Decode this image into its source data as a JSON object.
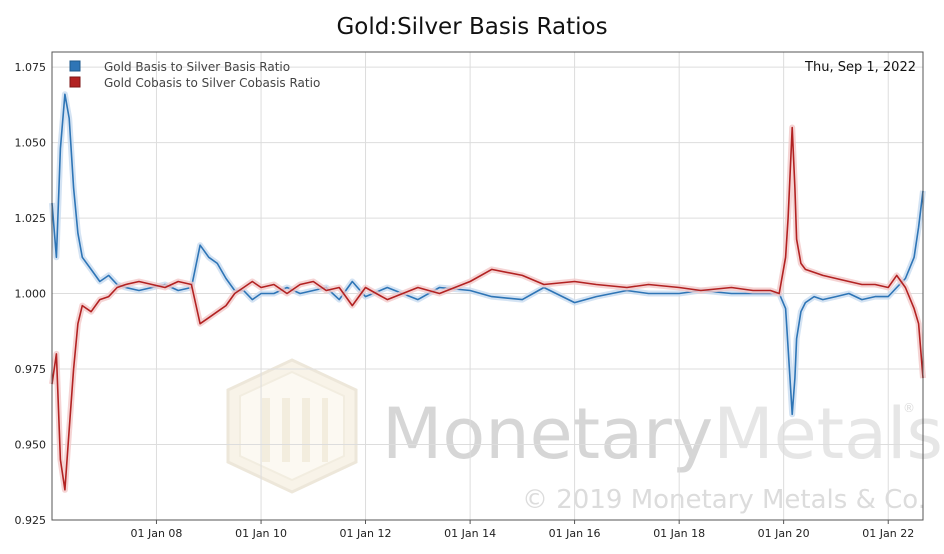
{
  "chart_data": {
    "type": "line",
    "title": "Gold:Silver Basis Ratios",
    "date_label": "Thu, Sep 1, 2022",
    "xlabel": "",
    "ylabel": "",
    "xlim": [
      "2006-01-01",
      "2022-09-01"
    ],
    "ylim": [
      0.925,
      1.08
    ],
    "y_ticks": [
      "0.925",
      "0.950",
      "0.975",
      "1.000",
      "1.025",
      "1.050",
      "1.075"
    ],
    "x_ticks": [
      {
        "date": "2008-01-01",
        "label": "01 Jan 08"
      },
      {
        "date": "2010-01-01",
        "label": "01 Jan 10"
      },
      {
        "date": "2012-01-01",
        "label": "01 Jan 12"
      },
      {
        "date": "2014-01-01",
        "label": "01 Jan 14"
      },
      {
        "date": "2016-01-01",
        "label": "01 Jan 16"
      },
      {
        "date": "2018-01-01",
        "label": "01 Jan 18"
      },
      {
        "date": "2020-01-01",
        "label": "01 Jan 20"
      },
      {
        "date": "2022-01-01",
        "label": "01 Jan 22"
      }
    ],
    "grid": true,
    "legend_position": "top-left",
    "series": [
      {
        "name": "Gold Basis to Silver Basis Ratio",
        "color": "#2e75b6",
        "x": [
          "2006-01-01",
          "2006-02-01",
          "2006-03-01",
          "2006-04-01",
          "2006-05-01",
          "2006-06-01",
          "2006-07-01",
          "2006-08-01",
          "2006-10-01",
          "2006-12-01",
          "2007-02-01",
          "2007-04-01",
          "2007-06-01",
          "2007-09-01",
          "2007-12-01",
          "2008-03-01",
          "2008-06-01",
          "2008-09-01",
          "2008-11-01",
          "2009-01-01",
          "2009-03-01",
          "2009-05-01",
          "2009-07-01",
          "2009-09-01",
          "2009-11-01",
          "2010-01-01",
          "2010-04-01",
          "2010-07-01",
          "2010-10-01",
          "2011-01-01",
          "2011-04-01",
          "2011-07-01",
          "2011-10-01",
          "2012-01-01",
          "2012-06-01",
          "2013-01-01",
          "2013-06-01",
          "2014-01-01",
          "2014-06-01",
          "2015-01-01",
          "2015-06-01",
          "2016-01-01",
          "2016-06-01",
          "2017-01-01",
          "2017-06-01",
          "2018-01-01",
          "2018-06-01",
          "2019-01-01",
          "2019-06-01",
          "2019-10-01",
          "2019-12-01",
          "2020-01-15",
          "2020-02-01",
          "2020-03-01",
          "2020-03-20",
          "2020-04-01",
          "2020-05-01",
          "2020-06-01",
          "2020-08-01",
          "2020-10-01",
          "2021-01-01",
          "2021-04-01",
          "2021-07-01",
          "2021-10-01",
          "2022-01-01",
          "2022-03-01",
          "2022-05-01",
          "2022-07-01",
          "2022-08-01",
          "2022-09-01"
        ],
        "y": [
          1.03,
          1.012,
          1.048,
          1.066,
          1.058,
          1.035,
          1.02,
          1.012,
          1.008,
          1.004,
          1.006,
          1.003,
          1.002,
          1.001,
          1.002,
          1.003,
          1.001,
          1.002,
          1.016,
          1.012,
          1.01,
          1.005,
          1.001,
          1.001,
          0.998,
          1.0,
          1.0,
          1.002,
          1.0,
          1.001,
          1.002,
          0.998,
          1.004,
          0.999,
          1.002,
          0.998,
          1.002,
          1.001,
          0.999,
          0.998,
          1.002,
          0.997,
          0.999,
          1.001,
          1.0,
          1.0,
          1.001,
          1.0,
          1.0,
          1.0,
          1.0,
          0.995,
          0.982,
          0.96,
          0.972,
          0.985,
          0.994,
          0.997,
          0.999,
          0.998,
          0.999,
          1.0,
          0.998,
          0.999,
          0.999,
          1.002,
          1.005,
          1.012,
          1.022,
          1.034
        ]
      },
      {
        "name": "Gold Cobasis to Silver Cobasis Ratio",
        "color": "#b22222",
        "x": [
          "2006-01-01",
          "2006-02-01",
          "2006-03-01",
          "2006-04-01",
          "2006-05-01",
          "2006-06-01",
          "2006-07-01",
          "2006-08-01",
          "2006-10-01",
          "2006-12-01",
          "2007-02-01",
          "2007-04-01",
          "2007-06-01",
          "2007-09-01",
          "2007-12-01",
          "2008-03-01",
          "2008-06-01",
          "2008-09-01",
          "2008-11-01",
          "2009-01-01",
          "2009-03-01",
          "2009-05-01",
          "2009-07-01",
          "2009-09-01",
          "2009-11-01",
          "2010-01-01",
          "2010-04-01",
          "2010-07-01",
          "2010-10-01",
          "2011-01-01",
          "2011-04-01",
          "2011-07-01",
          "2011-10-01",
          "2012-01-01",
          "2012-06-01",
          "2013-01-01",
          "2013-06-01",
          "2014-01-01",
          "2014-06-01",
          "2015-01-01",
          "2015-06-01",
          "2016-01-01",
          "2016-06-01",
          "2017-01-01",
          "2017-06-01",
          "2018-01-01",
          "2018-06-01",
          "2019-01-01",
          "2019-06-01",
          "2019-10-01",
          "2019-12-01",
          "2020-01-15",
          "2020-02-01",
          "2020-03-01",
          "2020-03-20",
          "2020-04-01",
          "2020-05-01",
          "2020-06-01",
          "2020-08-01",
          "2020-10-01",
          "2021-01-01",
          "2021-04-01",
          "2021-07-01",
          "2021-10-01",
          "2022-01-01",
          "2022-03-01",
          "2022-05-01",
          "2022-07-01",
          "2022-08-01",
          "2022-09-01"
        ],
        "y": [
          0.97,
          0.98,
          0.945,
          0.935,
          0.955,
          0.975,
          0.99,
          0.996,
          0.994,
          0.998,
          0.999,
          1.002,
          1.003,
          1.004,
          1.003,
          1.002,
          1.004,
          1.003,
          0.99,
          0.992,
          0.994,
          0.996,
          1.0,
          1.002,
          1.004,
          1.002,
          1.003,
          1.0,
          1.003,
          1.004,
          1.001,
          1.002,
          0.996,
          1.002,
          0.998,
          1.002,
          1.0,
          1.004,
          1.008,
          1.006,
          1.003,
          1.004,
          1.003,
          1.002,
          1.003,
          1.002,
          1.001,
          1.002,
          1.001,
          1.001,
          1.0,
          1.012,
          1.025,
          1.055,
          1.035,
          1.018,
          1.01,
          1.008,
          1.007,
          1.006,
          1.005,
          1.004,
          1.003,
          1.003,
          1.002,
          1.006,
          1.002,
          0.995,
          0.99,
          0.972
        ]
      }
    ]
  },
  "watermark": {
    "brand_part1": "Monetary",
    "brand_part2": "Metals",
    "registered": "®",
    "copyright": "© 2019 Monetary Metals & Co."
  }
}
